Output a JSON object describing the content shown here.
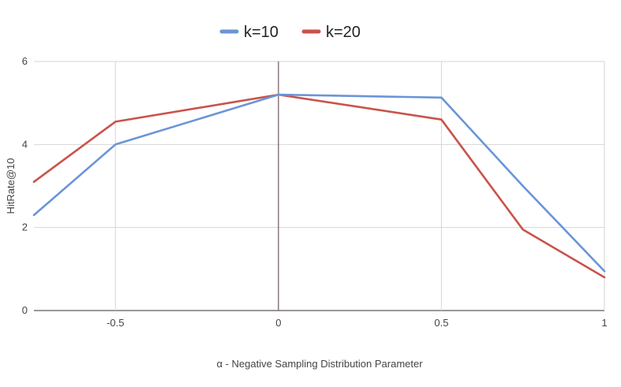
{
  "chart_data": {
    "type": "line",
    "title": "",
    "xlabel": "α - Negative Sampling Distribution Parameter",
    "ylabel": "HitRate@10",
    "xlim": [
      -0.75,
      1
    ],
    "ylim": [
      0,
      6
    ],
    "x_ticks": [
      -0.5,
      0,
      0.5,
      1
    ],
    "x_tick_labels": [
      "-0.5",
      "0",
      "0.5",
      "1"
    ],
    "y_ticks": [
      0,
      2,
      4,
      6
    ],
    "y_tick_labels": [
      "0",
      "2",
      "4",
      "6"
    ],
    "grid": true,
    "legend_position": "top-center",
    "x": [
      -0.75,
      -0.5,
      0,
      0.5,
      0.75,
      1
    ],
    "series": [
      {
        "name": "k=10",
        "color": "#6a95d6",
        "values": [
          2.3,
          4.0,
          5.2,
          5.13,
          3.0,
          0.95
        ]
      },
      {
        "name": "k=20",
        "color": "#c9534b",
        "values": [
          3.1,
          4.55,
          5.2,
          4.6,
          1.95,
          0.8
        ]
      }
    ],
    "zero_line_color": "#7b6468",
    "grid_color": "#d6d6d6"
  }
}
